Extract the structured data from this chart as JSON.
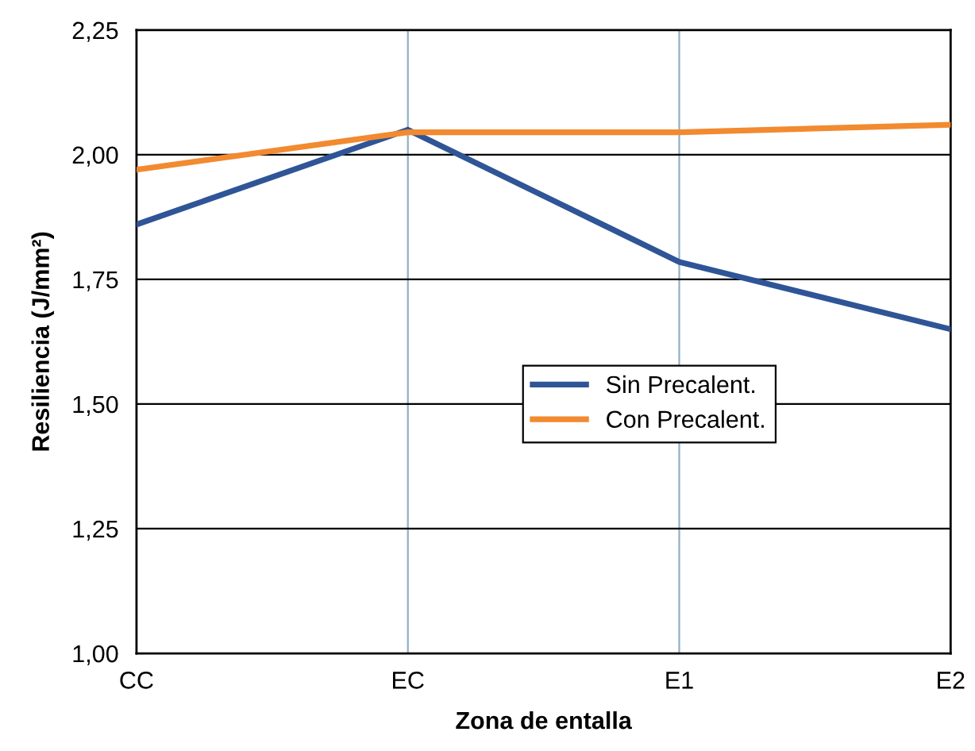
{
  "chart_data": {
    "type": "line",
    "xlabel": "Zona de entalla",
    "ylabel": "Resiliencia (J/mm²)",
    "categories": [
      "CC",
      "EC",
      "E1",
      "E2"
    ],
    "series": [
      {
        "name": "Sin Precalent.",
        "color": "#2f5597",
        "values": [
          1.86,
          2.05,
          1.785,
          1.65
        ]
      },
      {
        "name": "Con Precalent.",
        "color": "#f28a30",
        "values": [
          1.97,
          2.045,
          2.045,
          2.06
        ]
      }
    ],
    "ylim": [
      1.0,
      2.25
    ],
    "yticks": [
      {
        "value": 1.0,
        "label": "1,00"
      },
      {
        "value": 1.25,
        "label": "1,25"
      },
      {
        "value": 1.5,
        "label": "1,50"
      },
      {
        "value": 1.75,
        "label": "1,75"
      },
      {
        "value": 2.0,
        "label": "2,00"
      },
      {
        "value": 2.25,
        "label": "2,25"
      }
    ],
    "grid": true,
    "legend": "center right",
    "marker": "none",
    "line_style": "solid"
  }
}
